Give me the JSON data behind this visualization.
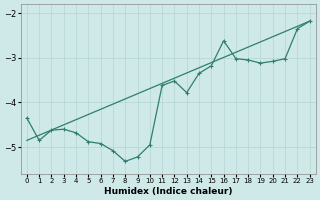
{
  "xlabel": "Humidex (Indice chaleur)",
  "xlim": [
    -0.5,
    23.5
  ],
  "ylim": [
    -5.6,
    -1.8
  ],
  "yticks": [
    -5,
    -4,
    -3,
    -2
  ],
  "xticks": [
    0,
    1,
    2,
    3,
    4,
    5,
    6,
    7,
    8,
    9,
    10,
    11,
    12,
    13,
    14,
    15,
    16,
    17,
    18,
    19,
    20,
    21,
    22,
    23
  ],
  "bg_color": "#cfe8e8",
  "line_color": "#2e7f6e",
  "jagged_x": [
    0,
    1,
    2,
    3,
    4,
    5,
    6,
    7,
    8,
    9,
    10,
    11,
    12,
    13,
    14,
    15,
    16,
    17,
    18,
    19,
    20,
    21,
    22,
    23
  ],
  "jagged_y": [
    -4.35,
    -4.85,
    -4.62,
    -4.6,
    -4.68,
    -4.88,
    -4.92,
    -5.08,
    -5.32,
    -5.22,
    -4.95,
    -3.62,
    -3.52,
    -3.78,
    -3.35,
    -3.18,
    -2.62,
    -3.02,
    -3.05,
    -3.12,
    -3.08,
    -3.02,
    -2.35,
    -2.18
  ],
  "trend_x": [
    0,
    23
  ],
  "trend_y": [
    -4.85,
    -2.18
  ],
  "grid_color": "#b8d8d8",
  "tick_fontsize": 5,
  "xlabel_fontsize": 6.5
}
